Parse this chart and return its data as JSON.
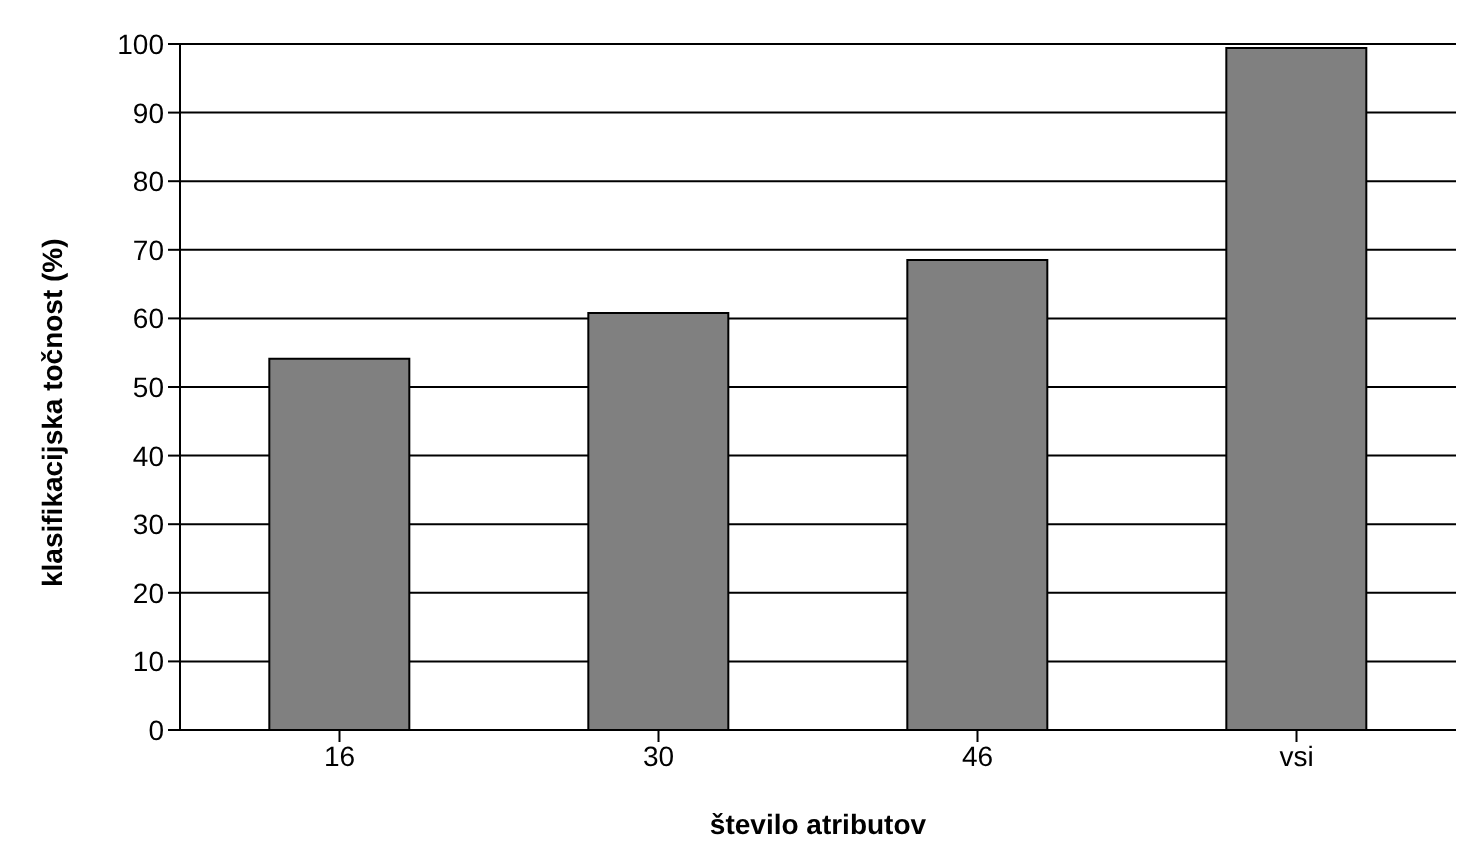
{
  "chart_data": {
    "type": "bar",
    "xlabel": "število atributov",
    "ylabel": "klasifikacijska točnost (%)",
    "categories": [
      "16",
      "30",
      "46",
      "vsi"
    ],
    "values": [
      54.1,
      60.8,
      68.5,
      99.4
    ],
    "color": "#808080",
    "ylim": [
      0,
      100
    ],
    "yticks": [
      0,
      10,
      20,
      30,
      40,
      50,
      60,
      70,
      80,
      90,
      100
    ],
    "grid": "y",
    "legend": false
  }
}
